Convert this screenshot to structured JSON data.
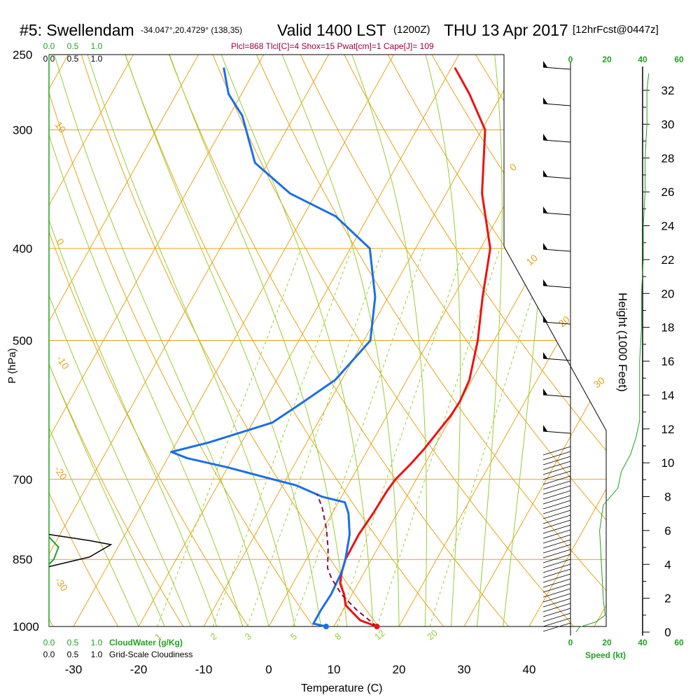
{
  "header": {
    "station": "#5: Swellendam",
    "coords": "-34.047°,20.4729° (138,35)",
    "valid": "Valid 1400 LST",
    "utc": "(1200Z)",
    "date": "THU 13 Apr 2017",
    "forecast": "[12hrFcst@0447z]",
    "indices": "Plcl=868 Tlcl[C]=4 Shox=15 Pwat[cm]=1 Cape[J]= 109"
  },
  "axes": {
    "xlabel": "Temperature (C)",
    "ylabel": "P (hPa)",
    "right_label": "Height (1000 Feet)",
    "x_ticks": [
      "-30",
      "-20",
      "-10",
      "0",
      "10",
      "20",
      "30",
      "40"
    ],
    "p_ticks": [
      "250",
      "300",
      "400",
      "500",
      "700",
      "850",
      "1000"
    ],
    "h_ticks": [
      "32",
      "30",
      "28",
      "26",
      "24",
      "22",
      "20",
      "18",
      "16",
      "14",
      "12",
      "10",
      "8",
      "6",
      "4",
      "2",
      "0"
    ],
    "speed_ticks": [
      "0",
      "20",
      "40",
      "60"
    ],
    "speed_label": "Speed (kt)",
    "cloud_ticks": [
      "0.0",
      "0.5",
      "1.0"
    ],
    "cloudwater_label": "CloudWater (g/Kg)",
    "cloudiness_label": "Grid-Scale Cloudiness"
  },
  "isotherm_labels": [
    "0",
    "10",
    "20",
    "30",
    "10",
    "0",
    "-10",
    "-20",
    "-30"
  ],
  "mixing_ratio_labels": [
    "1",
    "2",
    "3",
    "5",
    "8",
    "12",
    "20"
  ],
  "colors": {
    "temperature": "#ee1111",
    "dewpoint": "#1a6fe6",
    "parcel": "#8b0a50",
    "isotherm": "#e8a317",
    "dry_adiabat": "#e8a317",
    "moist_adiabat": "#9acd32",
    "mixing_ratio": "#9acd32",
    "wind_speed": "#1fa31f",
    "indices": "#a0003c"
  },
  "chart_data": {
    "type": "skew-t sounding",
    "p_range": [
      1000,
      250
    ],
    "t_range_at_surface": [
      -34,
      52
    ],
    "series": [
      {
        "name": "Temperature",
        "points": [
          [
            16.6,
            1000
          ],
          [
            13.5,
            985
          ],
          [
            10,
            950
          ],
          [
            8.8,
            925
          ],
          [
            7.2,
            900
          ],
          [
            6.5,
            875
          ],
          [
            6,
            850
          ],
          [
            5.9,
            800
          ],
          [
            6.3,
            760
          ],
          [
            6.5,
            720
          ],
          [
            6.8,
            700
          ],
          [
            7.8,
            675
          ],
          [
            8.6,
            650
          ],
          [
            9.3,
            620
          ],
          [
            9.8,
            600
          ],
          [
            10,
            580
          ],
          [
            9.6,
            550
          ],
          [
            7.5,
            500
          ],
          [
            4.5,
            450
          ],
          [
            1.5,
            400
          ],
          [
            -4.5,
            350
          ],
          [
            -9.5,
            300
          ],
          [
            -15,
            275
          ],
          [
            -19.5,
            258
          ]
        ]
      },
      {
        "name": "Dew point",
        "points": [
          [
            8.8,
            1000
          ],
          [
            6.6,
            993
          ],
          [
            6.6,
            960
          ],
          [
            6.8,
            925
          ],
          [
            6.5,
            875
          ],
          [
            6,
            850
          ],
          [
            4.5,
            800
          ],
          [
            2.5,
            760
          ],
          [
            1,
            740
          ],
          [
            -3,
            730
          ],
          [
            -8,
            710
          ],
          [
            -14,
            695
          ],
          [
            -20,
            680
          ],
          [
            -27,
            665
          ],
          [
            -30,
            655
          ],
          [
            -25,
            640
          ],
          [
            -17,
            610
          ],
          [
            -14,
            580
          ],
          [
            -11,
            550
          ],
          [
            -9,
            500
          ],
          [
            -12,
            450
          ],
          [
            -17,
            400
          ],
          [
            -25,
            370
          ],
          [
            -34,
            350
          ],
          [
            -42,
            325
          ],
          [
            -48,
            290
          ],
          [
            -52,
            275
          ],
          [
            -55,
            258
          ]
        ]
      },
      {
        "name": "Parcel",
        "points": [
          [
            16.6,
            1000
          ],
          [
            12,
            960
          ],
          [
            8.4,
            925
          ],
          [
            5.5,
            890
          ],
          [
            4,
            868
          ],
          [
            2.5,
            830
          ],
          [
            0.5,
            790
          ],
          [
            -2,
            750
          ],
          [
            -4,
            725
          ]
        ]
      }
    ],
    "cloud_water": {
      "levels_hpa": [
        860,
        850,
        825,
        815,
        805
      ],
      "values_gkg": [
        0,
        0.05,
        0.1,
        0.05,
        0
      ]
    },
    "cloudiness": {
      "levels_hpa": [
        865,
        845,
        820,
        812,
        800
      ],
      "values": [
        0,
        0.85,
        1.3,
        0.85,
        0
      ]
    },
    "wind_speed_kt": [
      [
        0,
        3
      ],
      [
        0.3,
        5
      ],
      [
        0.6,
        14
      ],
      [
        1,
        19
      ],
      [
        2,
        18
      ],
      [
        4,
        17
      ],
      [
        6,
        16
      ],
      [
        7.5,
        18
      ],
      [
        8.5,
        26
      ],
      [
        9.5,
        28
      ],
      [
        10.5,
        33
      ],
      [
        11.5,
        36
      ],
      [
        12.5,
        38
      ],
      [
        14,
        38
      ],
      [
        16,
        38
      ],
      [
        18,
        39
      ],
      [
        20,
        39
      ],
      [
        22,
        40
      ],
      [
        24,
        40
      ],
      [
        26,
        41
      ],
      [
        28,
        41
      ],
      [
        30,
        42
      ],
      [
        32,
        42
      ],
      [
        33,
        43
      ]
    ]
  }
}
